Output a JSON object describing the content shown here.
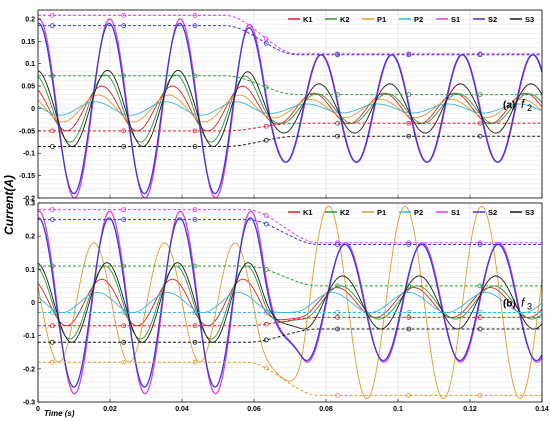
{
  "figure": {
    "ylabel": "Current(A)",
    "xlabel": "Time (s)"
  },
  "colors": {
    "K1": "#e0202c",
    "K2": "#2f9a2f",
    "P1": "#e39a2a",
    "P2": "#35b6e0",
    "S1": "#e040e0",
    "S2": "#3a3ad8",
    "S3": "#1a1a1a"
  },
  "chart_data": [
    {
      "type": "line",
      "panel_label": "(a)",
      "panel_label_sym": "f",
      "panel_label_sub": "2",
      "x_start": 0,
      "x_end": 0.14,
      "xlim": [
        0,
        0.14
      ],
      "ylim": [
        -0.2,
        0.22
      ],
      "yticks": [
        -0.2,
        -0.15,
        -0.1,
        -0.05,
        0,
        0.05,
        0.1,
        0.15,
        0.2
      ],
      "ytick_labels": [
        "-0.2",
        "-0.15",
        "-0.1",
        "-0.05",
        "0",
        "0.05",
        "0.1",
        "0.15",
        "0.2"
      ],
      "xticks": [
        0,
        0.02,
        0.04,
        0.06,
        0.08,
        0.1,
        0.12,
        0.14
      ],
      "xtick_labels": [],
      "legend": [
        "K1",
        "K2",
        "P1",
        "P2",
        "S1",
        "S2",
        "S3"
      ],
      "legend_position": "top-right",
      "grid": true,
      "freq_before": 51,
      "freq_after": 51,
      "transition_time": 0.062,
      "series": [
        {
          "name": "K1",
          "offset_before": 0.0,
          "amp_before": 0.05,
          "offset_after": 0.0,
          "amp_after": 0.034,
          "phase": 0.6
        },
        {
          "name": "K2",
          "offset_before": 0.0,
          "amp_before": 0.075,
          "offset_after": 0.0,
          "amp_after": 0.033,
          "phase": 0.3
        },
        {
          "name": "P1",
          "offset_before": 0.0,
          "amp_before": 0.03,
          "offset_after": 0.0,
          "amp_after": 0.02,
          "phase": 0.9
        },
        {
          "name": "P2",
          "offset_before": 0.0,
          "amp_before": 0.015,
          "offset_after": 0.0,
          "amp_after": 0.01,
          "phase": 1.2
        },
        {
          "name": "S1",
          "offset_before": 0.0,
          "amp_before": 0.2,
          "offset_after": 0.0,
          "amp_after": 0.12,
          "phase": -0.1
        },
        {
          "name": "S2",
          "offset_before": 0.0,
          "amp_before": 0.19,
          "offset_after": 0.0,
          "amp_after": 0.12,
          "phase": -0.05
        },
        {
          "name": "S3",
          "offset_before": 0.0,
          "amp_before": 0.085,
          "offset_after": 0.0,
          "amp_after": 0.055,
          "phase": 0.1
        }
      ],
      "envelopes": [
        {
          "name": "S1",
          "before": 0.208,
          "after": 0.122
        },
        {
          "name": "S2",
          "before": 0.185,
          "after": 0.12
        },
        {
          "name": "K2",
          "before": 0.073,
          "after": 0.031
        },
        {
          "name": "K1",
          "before": -0.05,
          "after": -0.033
        },
        {
          "name": "S3",
          "before": -0.085,
          "after": -0.062
        }
      ]
    },
    {
      "type": "line",
      "panel_label": "(b)",
      "panel_label_sym": "f",
      "panel_label_sub": "3",
      "x_start": 0,
      "x_end": 0.14,
      "xlim": [
        0,
        0.14
      ],
      "ylim": [
        -0.3,
        0.3
      ],
      "yticks": [
        -0.3,
        -0.2,
        -0.1,
        0,
        0.1,
        0.2,
        0.3
      ],
      "ytick_labels": [
        "-0.3",
        "-0.2",
        "-0.1",
        "0",
        "0.1",
        "0.2",
        "0.3"
      ],
      "xticks": [
        0,
        0.02,
        0.04,
        0.06,
        0.08,
        0.1,
        0.12,
        0.14
      ],
      "xtick_labels": [
        "0",
        "0.02",
        "0.04",
        "0.06",
        "0.08",
        "0.1",
        "0.12",
        "0.14"
      ],
      "legend": [
        "K1",
        "K2",
        "P1",
        "P2",
        "S1",
        "S2",
        "S3"
      ],
      "legend_position": "top-right",
      "grid": true,
      "freq_before": 51,
      "freq_after": 47,
      "transition_time": 0.068,
      "series": [
        {
          "name": "K1",
          "offset_before": 0.0,
          "amp_before": 0.07,
          "offset_after": 0.0,
          "amp_after": 0.045,
          "phase": 0.6
        },
        {
          "name": "K2",
          "offset_before": 0.0,
          "amp_before": 0.11,
          "offset_after": 0.0,
          "amp_after": 0.05,
          "phase": 0.3
        },
        {
          "name": "P1",
          "offset_before": 0.0,
          "amp_before": 0.18,
          "offset_after": 0.0,
          "amp_after": 0.29,
          "phase": 1.3
        },
        {
          "name": "P2",
          "offset_before": 0.0,
          "amp_before": 0.03,
          "offset_after": 0.0,
          "amp_after": 0.03,
          "phase": 1.0
        },
        {
          "name": "S1",
          "offset_before": 0.0,
          "amp_before": 0.275,
          "offset_after": 0.0,
          "amp_after": 0.18,
          "phase": -0.1
        },
        {
          "name": "S2",
          "offset_before": 0.0,
          "amp_before": 0.255,
          "offset_after": 0.0,
          "amp_after": 0.175,
          "phase": -0.05
        },
        {
          "name": "S3",
          "offset_before": 0.0,
          "amp_before": 0.12,
          "offset_after": 0.0,
          "amp_after": 0.08,
          "phase": 0.15
        }
      ],
      "envelopes": [
        {
          "name": "S1",
          "before": 0.28,
          "after": 0.18
        },
        {
          "name": "S2",
          "before": 0.25,
          "after": 0.175
        },
        {
          "name": "K2",
          "before": 0.11,
          "after": 0.05
        },
        {
          "name": "P2",
          "before": -0.03,
          "after": -0.03
        },
        {
          "name": "K1",
          "before": -0.07,
          "after": -0.045
        },
        {
          "name": "S3",
          "before": -0.12,
          "after": -0.08
        },
        {
          "name": "P1",
          "before": -0.18,
          "after": -0.28
        }
      ]
    }
  ]
}
